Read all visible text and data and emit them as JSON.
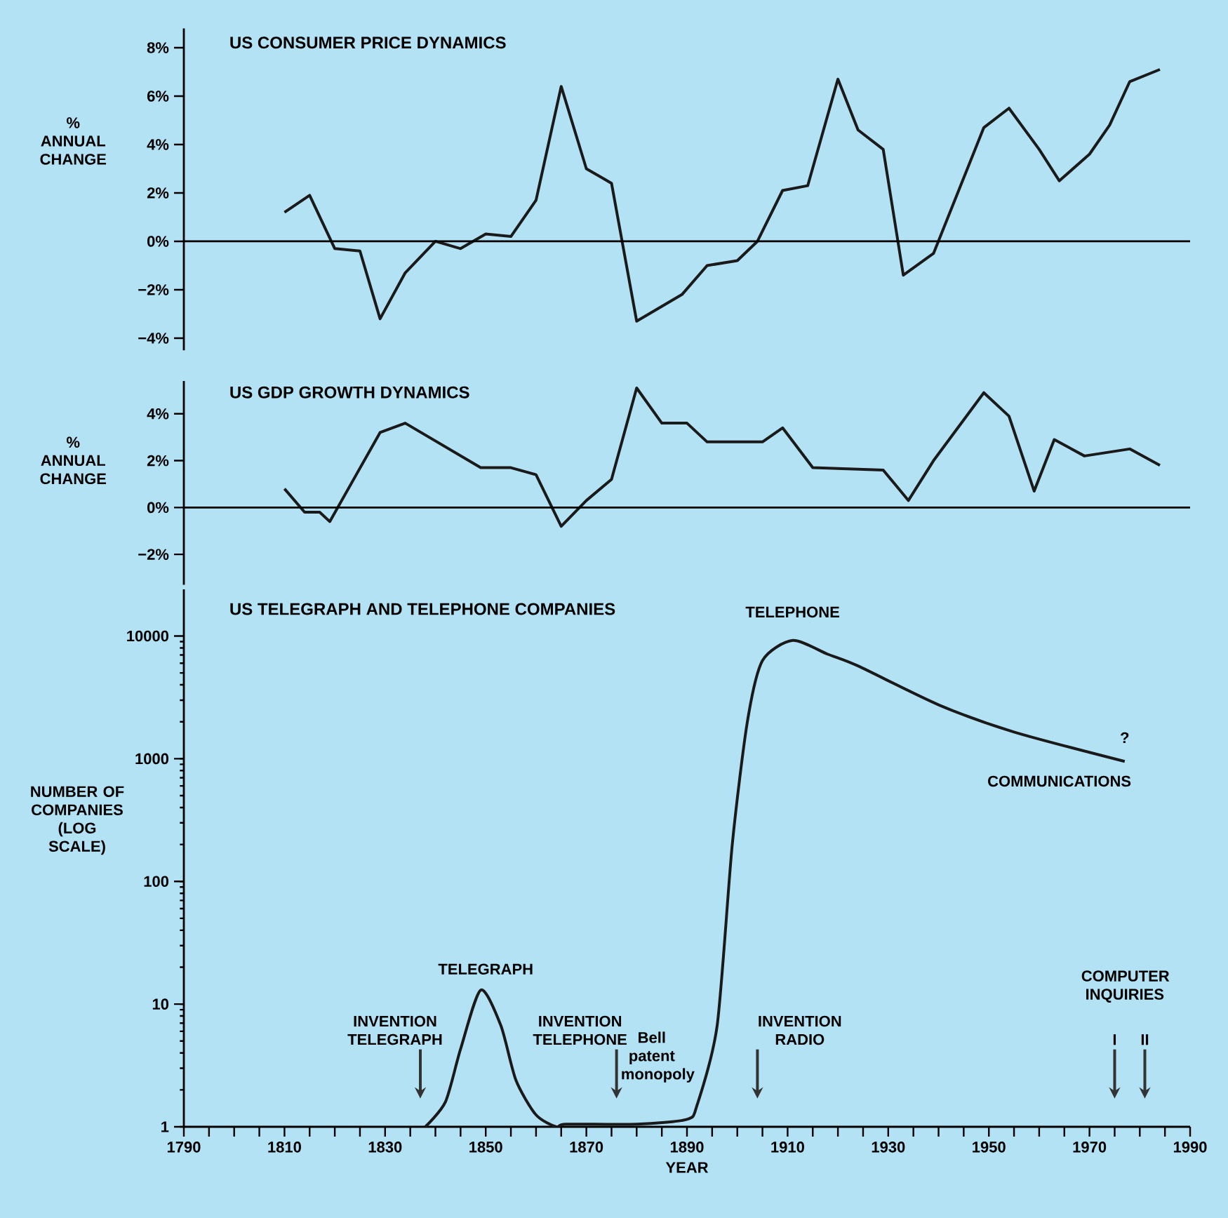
{
  "chart_data": [
    {
      "type": "line",
      "title": "US CONSUMER PRICE DYNAMICS",
      "ylabel": "% ANNUAL CHANGE",
      "color": "#1a1a1a",
      "x": [
        1810,
        1815,
        1820,
        1825,
        1829,
        1834,
        1840,
        1845,
        1850,
        1855,
        1860,
        1865,
        1870,
        1875,
        1880,
        1889,
        1894,
        1900,
        1904,
        1909,
        1914,
        1920,
        1924,
        1929,
        1933,
        1939,
        1944,
        1949,
        1954,
        1960,
        1964,
        1970,
        1974,
        1978,
        1984
      ],
      "values": [
        1.2,
        1.9,
        -0.3,
        -0.4,
        -3.2,
        -1.3,
        0,
        -0.3,
        0.3,
        0.2,
        1.7,
        6.4,
        3.0,
        2.4,
        -3.3,
        -2.2,
        -1.0,
        -0.8,
        0,
        2.1,
        2.3,
        6.7,
        4.6,
        3.8,
        -1.4,
        -0.5,
        2.1,
        4.7,
        5.5,
        3.8,
        2.5,
        3.6,
        4.8,
        6.6,
        7.1
      ],
      "xlim": [
        1790,
        1990
      ],
      "ylim": [
        -4.5,
        8.8
      ],
      "yticks": [
        {
          "value": 8,
          "label": "8%"
        },
        {
          "value": 6,
          "label": "6%"
        },
        {
          "value": 4,
          "label": "4%"
        },
        {
          "value": 2,
          "label": "2%"
        },
        {
          "value": 0,
          "label": "0%"
        },
        {
          "value": -2,
          "label": "−2%"
        },
        {
          "value": -4,
          "label": "−4%"
        }
      ],
      "tick_labels": "y",
      "ref_lines": [
        {
          "axis": "y",
          "value": 0
        }
      ]
    },
    {
      "type": "line",
      "title": "US GDP GROWTH DYNAMICS",
      "ylabel": "% ANNUAL CHANGE",
      "color": "#1a1a1a",
      "x": [
        1810,
        1814,
        1817,
        1819,
        1829,
        1834,
        1849,
        1855,
        1860,
        1865,
        1870,
        1875,
        1880,
        1885,
        1890,
        1894,
        1905,
        1909,
        1915,
        1929,
        1934,
        1939,
        1949,
        1954,
        1959,
        1963,
        1969,
        1978,
        1984
      ],
      "values": [
        0.8,
        -0.2,
        -0.2,
        -0.6,
        3.2,
        3.6,
        1.7,
        1.7,
        1.4,
        -0.8,
        0.3,
        1.2,
        5.1,
        3.6,
        3.6,
        2.8,
        2.8,
        3.4,
        1.7,
        1.6,
        0.3,
        2.0,
        4.9,
        3.9,
        0.7,
        2.9,
        2.2,
        2.5,
        1.8
      ],
      "xlim": [
        1790,
        1990
      ],
      "ylim": [
        -3.3,
        5.4
      ],
      "yticks": [
        {
          "value": 4,
          "label": "4%"
        },
        {
          "value": 2,
          "label": "2%"
        },
        {
          "value": 0,
          "label": "0%"
        },
        {
          "value": -2,
          "label": "−2%"
        }
      ],
      "tick_labels": "y",
      "ref_lines": [
        {
          "axis": "y",
          "value": 0
        }
      ]
    },
    {
      "type": "line",
      "title": "US TELEGRAPH AND TELEPHONE COMPANIES",
      "ylabel": "NUMBER OF COMPANIES (LOG SCALE)",
      "xlabel": "YEAR",
      "color": "#1a1a1a",
      "log": "y",
      "x": [
        1838,
        1842,
        1845,
        1849,
        1853,
        1856,
        1860,
        1864,
        1866,
        1880,
        1890,
        1892,
        1896,
        1899,
        1902,
        1905,
        1911,
        1918,
        1924,
        1940,
        1955,
        1977
      ],
      "values": [
        1,
        1.6,
        4.3,
        13,
        6.7,
        2.4,
        1.25,
        1,
        1.05,
        1.05,
        1.15,
        1.5,
        6.7,
        200,
        2000,
        6300,
        9200,
        7100,
        5700,
        2750,
        1650,
        950
      ],
      "xlim": [
        1790,
        1990
      ],
      "ylim": [
        1,
        24000
      ],
      "yticks": [
        1,
        10,
        100,
        1000,
        10000
      ],
      "xticks": [
        1790,
        {
          "value": 1795,
          "label": null
        },
        {
          "value": 1800,
          "label": null
        },
        {
          "value": 1805,
          "label": null
        },
        1810,
        {
          "value": 1815,
          "label": null
        },
        {
          "value": 1820,
          "label": null
        },
        {
          "value": 1825,
          "label": null
        },
        1830,
        {
          "value": 1835,
          "label": null
        },
        {
          "value": 1840,
          "label": null
        },
        {
          "value": 1845,
          "label": null
        },
        1850,
        {
          "value": 1855,
          "label": null
        },
        {
          "value": 1860,
          "label": null
        },
        {
          "value": 1865,
          "label": null
        },
        1870,
        {
          "value": 1875,
          "label": null
        },
        {
          "value": 1880,
          "label": null
        },
        {
          "value": 1885,
          "label": null
        },
        1890,
        {
          "value": 1895,
          "label": null
        },
        {
          "value": 1900,
          "label": null
        },
        {
          "value": 1905,
          "label": null
        },
        1910,
        {
          "value": 1915,
          "label": null
        },
        {
          "value": 1920,
          "label": null
        },
        {
          "value": 1925,
          "label": null
        },
        1930,
        {
          "value": 1935,
          "label": null
        },
        {
          "value": 1940,
          "label": null
        },
        {
          "value": 1945,
          "label": null
        },
        1950,
        {
          "value": 1955,
          "label": null
        },
        {
          "value": 1960,
          "label": null
        },
        {
          "value": 1965,
          "label": null
        },
        1970,
        {
          "value": 1975,
          "label": null
        },
        {
          "value": 1980,
          "label": null
        },
        {
          "value": 1985,
          "label": null
        },
        1990
      ],
      "annotations": [
        "TELEGRAPH",
        "TELEPHONE",
        "?",
        "COMMUNICATIONS",
        "INVENTION TELEGRAPH",
        "INVENTION TELEPHONE",
        "Bell patent monopoly",
        "INVENTION RADIO",
        "COMPUTER INQUIRIES",
        "I",
        "II"
      ]
    }
  ]
}
